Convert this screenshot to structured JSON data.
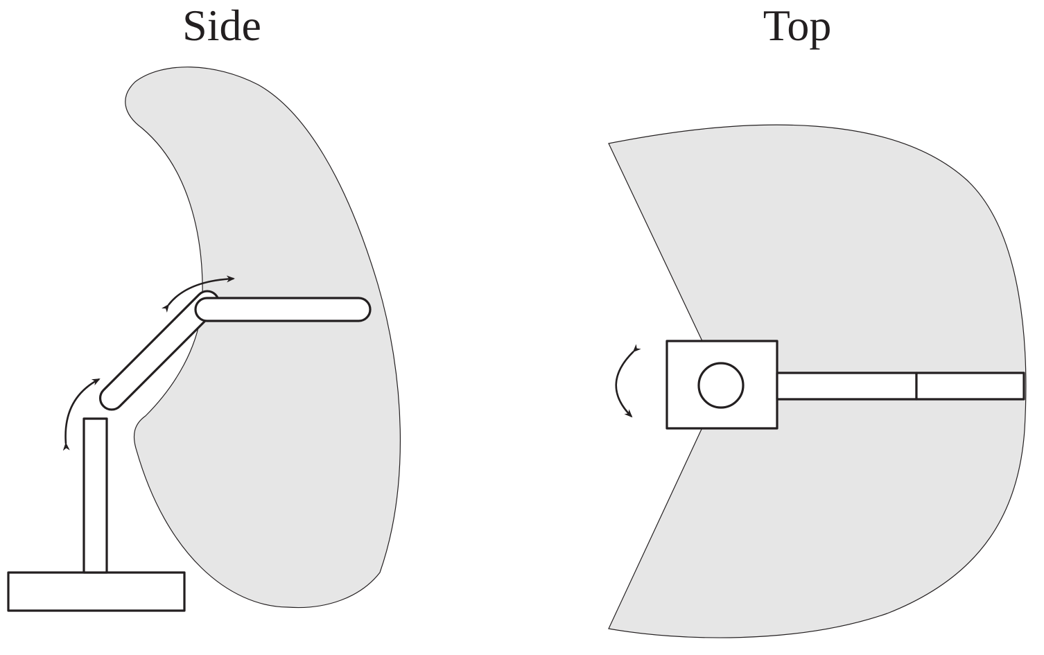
{
  "views": {
    "side": {
      "title": "Side"
    },
    "top": {
      "title": "Top"
    }
  },
  "colors": {
    "workspace_fill": "#e6e6e6",
    "line": "#231f20",
    "link_fill": "#ffffff"
  }
}
